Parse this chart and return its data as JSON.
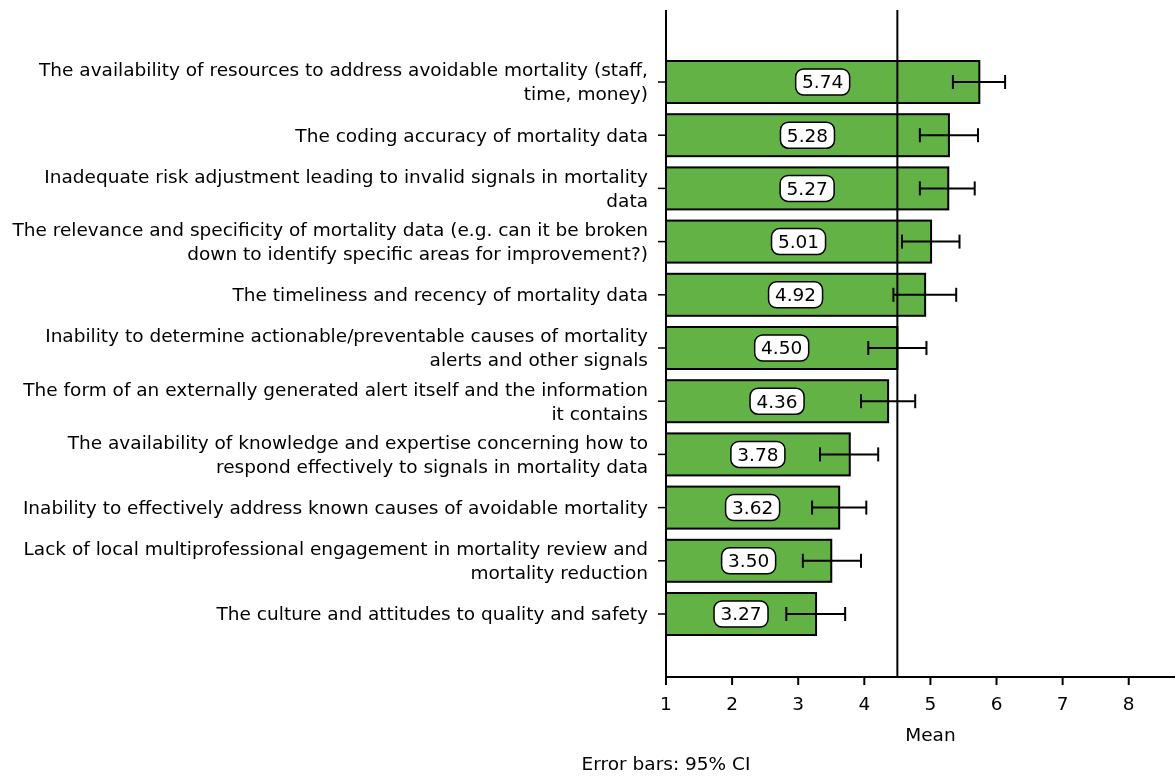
{
  "chart_data": {
    "type": "bar",
    "orientation": "horizontal",
    "categories": [
      "The availability of resources to address avoidable mortality (staff, time, money)",
      "The coding accuracy of mortality data",
      "Inadequate risk adjustment leading to invalid signals in mortality data",
      "The relevance and specificity of mortality data (e.g. can it be broken down to identify specific areas for improvement?)",
      "The timeliness and recency of mortality data",
      "Inability to determine actionable/preventable causes of mortality alerts and other signals",
      "The form of an externally generated alert itself and the information it contains",
      "The availability of knowledge and expertise concerning how to respond effectively to signals in mortality data",
      "Inability to effectively address known causes of avoidable mortality",
      "Lack of local multiprofessional engagement in mortality review and mortality reduction",
      "The culture and attitudes to quality and safety"
    ],
    "values": [
      5.74,
      5.28,
      5.27,
      5.01,
      4.92,
      4.5,
      4.36,
      3.78,
      3.62,
      3.5,
      3.27
    ],
    "value_labels": [
      "5.74",
      "5.28",
      "5.27",
      "5.01",
      "4.92",
      "4.50",
      "4.36",
      "3.78",
      "3.62",
      "3.50",
      "3.27"
    ],
    "errors": [
      [
        5.34,
        6.13
      ],
      [
        4.84,
        5.72
      ],
      [
        4.84,
        5.67
      ],
      [
        4.57,
        5.44
      ],
      [
        4.44,
        5.39
      ],
      [
        4.06,
        4.94
      ],
      [
        3.95,
        4.77
      ],
      [
        3.33,
        4.21
      ],
      [
        3.21,
        4.03
      ],
      [
        3.07,
        3.95
      ],
      [
        2.82,
        3.71
      ]
    ],
    "color": "#62b246",
    "xlim": [
      1,
      8.7
    ],
    "xticks": [
      1,
      2,
      3,
      4,
      5,
      6,
      7,
      8
    ],
    "xlabel": "Mean",
    "ref_lines": [
      {
        "axis": "x",
        "value": 4.5,
        "color": "#000000"
      }
    ],
    "annotations": [
      "Error bars: 95% CI"
    ],
    "grid": false
  }
}
